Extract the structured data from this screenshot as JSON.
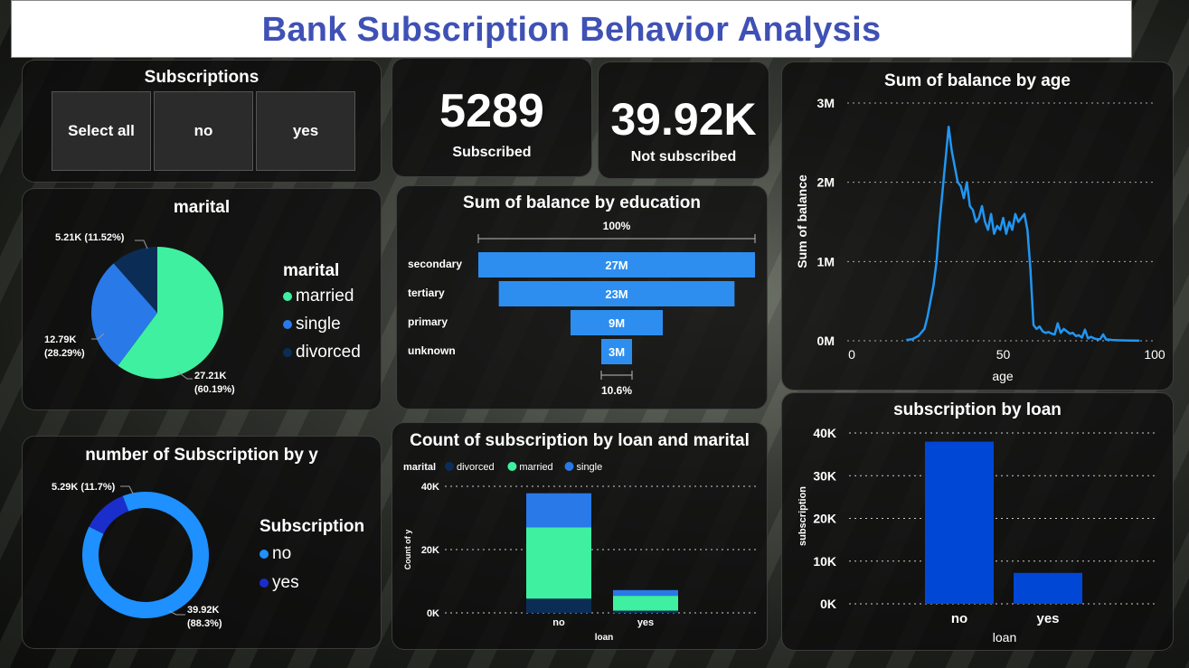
{
  "header": {
    "title": "Bank Subscription Behavior Analysis"
  },
  "slicer": {
    "title": "Subscriptions",
    "options": [
      "Select all",
      "no",
      "yes"
    ]
  },
  "kpis": [
    {
      "value": "5289",
      "label": "Subscribed"
    },
    {
      "value": "39.92K",
      "label": "Not subscribed"
    }
  ],
  "colors": {
    "married": "#3ff0a0",
    "single": "#2979e8",
    "divorced": "#0b2d55",
    "no": "#1e90ff",
    "yes": "#1a2ecc",
    "line": "#2196f3",
    "bar": "#0047d6"
  },
  "chart_data": [
    {
      "id": "marital-pie",
      "type": "pie",
      "title": "marital",
      "legend_title": "marital",
      "legend_position": "right",
      "categories": [
        "married",
        "single",
        "divorced"
      ],
      "values": [
        27210,
        12790,
        5210
      ],
      "labels": [
        "27.21K (60.19%)",
        "12.79K (28.29%)",
        "5.21K (11.52%)"
      ],
      "label_lines": [
        [
          "27.21K",
          "(60.19%)"
        ],
        [
          "12.79K",
          "(28.29%)"
        ],
        [
          "5.21K (11.52%)"
        ]
      ]
    },
    {
      "id": "education-funnel",
      "type": "bar",
      "title": "Sum of balance by education",
      "categories": [
        "secondary",
        "tertiary",
        "primary",
        "unknown"
      ],
      "values": [
        27000000,
        23000000,
        9000000,
        3000000
      ],
      "data_labels": [
        "27M",
        "23M",
        "9M",
        "3M"
      ],
      "top_label": "100%",
      "bottom_label": "10.6%"
    },
    {
      "id": "age-line",
      "type": "line",
      "title": "Sum of balance by age",
      "xlabel": "age",
      "ylabel": "Sum of balance",
      "xlim": [
        0,
        100
      ],
      "ylim": [
        0,
        3000000
      ],
      "xticks": [
        "0",
        "50",
        "100"
      ],
      "yticks": [
        "0M",
        "1M",
        "2M",
        "3M"
      ],
      "x": [
        18,
        20,
        22,
        24,
        25,
        26,
        27,
        28,
        29,
        30,
        31,
        32,
        33,
        34,
        35,
        36,
        37,
        38,
        39,
        40,
        41,
        42,
        43,
        44,
        45,
        46,
        47,
        48,
        49,
        50,
        51,
        52,
        53,
        54,
        55,
        56,
        57,
        58,
        59,
        60,
        61,
        62,
        63,
        64,
        65,
        66,
        67,
        68,
        69,
        70,
        71,
        72,
        73,
        74,
        75,
        76,
        77,
        78,
        79,
        80,
        81,
        82,
        83,
        84,
        85,
        86,
        87,
        88,
        89,
        90,
        92,
        95
      ],
      "y": [
        10000,
        20000,
        60000,
        150000,
        300000,
        500000,
        700000,
        1000000,
        1500000,
        1900000,
        2300000,
        2700000,
        2400000,
        2200000,
        2000000,
        1950000,
        1800000,
        2000000,
        1700000,
        1650000,
        1500000,
        1550000,
        1700000,
        1500000,
        1400000,
        1600000,
        1350000,
        1450000,
        1400000,
        1550000,
        1350000,
        1500000,
        1400000,
        1600000,
        1500000,
        1550000,
        1600000,
        1400000,
        900000,
        200000,
        150000,
        180000,
        120000,
        100000,
        110000,
        90000,
        80000,
        220000,
        100000,
        150000,
        120000,
        90000,
        100000,
        60000,
        70000,
        40000,
        140000,
        30000,
        50000,
        30000,
        20000,
        20000,
        80000,
        15000,
        15000,
        10000,
        8000,
        6000,
        5000,
        4000,
        3000,
        2000
      ]
    },
    {
      "id": "subscription-donut",
      "type": "pie",
      "title": "number of Subscription by y",
      "legend_title": "Subscription",
      "legend_position": "right",
      "categories": [
        "no",
        "yes"
      ],
      "values": [
        39920,
        5290
      ],
      "labels": [
        "39.92K (88.3%)",
        "5.29K (11.7%)"
      ],
      "label_lines": [
        [
          "39.92K",
          "(88.3%)"
        ],
        [
          "5.29K (11.7%)"
        ]
      ]
    },
    {
      "id": "loan-marital-stacked",
      "type": "bar",
      "title": "Count of subscription by loan and marital",
      "legend_title": "marital",
      "legend_position": "top-left",
      "xlabel": "loan",
      "ylabel": "Count of y",
      "categories": [
        "no",
        "yes"
      ],
      "ylim": [
        0,
        40000
      ],
      "yticks": [
        "0K",
        "20K",
        "40K"
      ],
      "series": [
        {
          "name": "divorced",
          "values": [
            4500,
            700
          ]
        },
        {
          "name": "married",
          "values": [
            22500,
            4700
          ]
        },
        {
          "name": "single",
          "values": [
            10800,
            1800
          ]
        }
      ]
    },
    {
      "id": "loan-bar",
      "type": "bar",
      "title": "subscription by loan",
      "xlabel": "loan",
      "ylabel": "subscription",
      "categories": [
        "no",
        "yes"
      ],
      "values": [
        37970,
        7240
      ],
      "ylim": [
        0,
        40000
      ],
      "yticks": [
        "0K",
        "10K",
        "20K",
        "30K",
        "40K"
      ]
    }
  ]
}
